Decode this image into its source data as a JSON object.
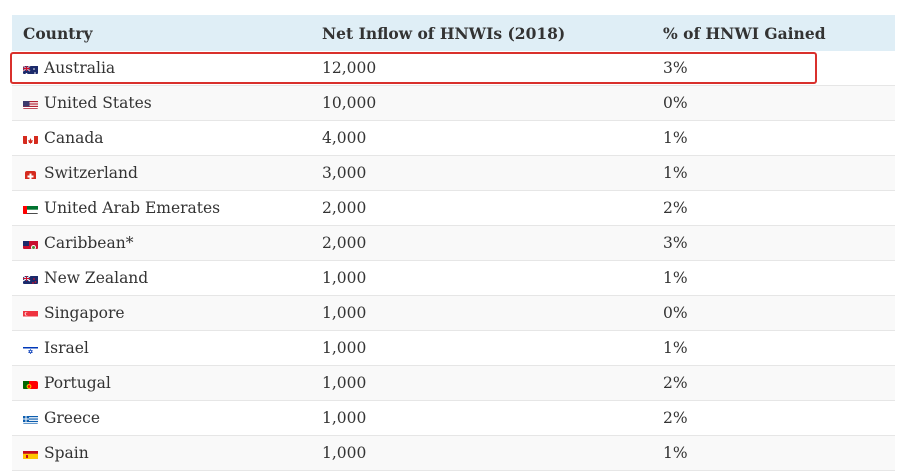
{
  "table": {
    "headers": [
      "Country",
      "Net Inflow of HNWIs (2018)",
      "% of HNWI Gained"
    ],
    "rows": [
      {
        "country": "Australia",
        "flag": "australia-flag-icon",
        "inflow": "12,000",
        "gained": "3%"
      },
      {
        "country": "United States",
        "flag": "united-states-flag-icon",
        "inflow": "10,000",
        "gained": "0%"
      },
      {
        "country": "Canada",
        "flag": "canada-flag-icon",
        "inflow": "4,000",
        "gained": "1%"
      },
      {
        "country": "Switzerland",
        "flag": "switzerland-flag-icon",
        "inflow": "3,000",
        "gained": "1%"
      },
      {
        "country": "United Arab Emerates",
        "flag": "uae-flag-icon",
        "inflow": "2,000",
        "gained": "2%"
      },
      {
        "country": "Caribbean*",
        "flag": "caribbean-flag-icon",
        "inflow": "2,000",
        "gained": "3%"
      },
      {
        "country": "New Zealand",
        "flag": "new-zealand-flag-icon",
        "inflow": "1,000",
        "gained": "1%"
      },
      {
        "country": "Singapore",
        "flag": "singapore-flag-icon",
        "inflow": "1,000",
        "gained": "0%"
      },
      {
        "country": "Israel",
        "flag": "israel-flag-icon",
        "inflow": "1,000",
        "gained": "1%"
      },
      {
        "country": "Portugal",
        "flag": "portugal-flag-icon",
        "inflow": "1,000",
        "gained": "2%"
      },
      {
        "country": "Greece",
        "flag": "greece-flag-icon",
        "inflow": "1,000",
        "gained": "2%"
      },
      {
        "country": "Spain",
        "flag": "spain-flag-icon",
        "inflow": "1,000",
        "gained": "1%"
      }
    ],
    "highlighted_row": "Australia"
  },
  "colors": {
    "header_bg": "#dfeef6",
    "highlight_border": "#d9302c",
    "row_alt_bg": "#f9f9f9"
  }
}
